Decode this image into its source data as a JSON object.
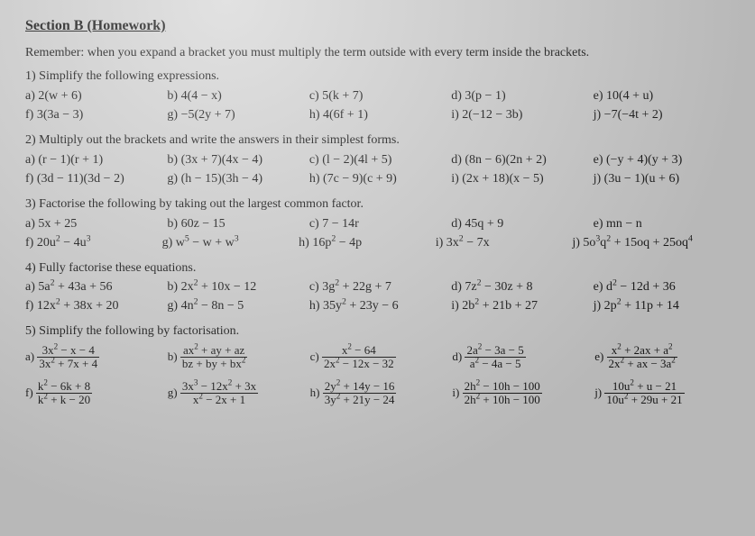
{
  "title": "Section B (Homework)",
  "remember": "Remember: when you expand a bracket you must multiply the term outside with every term inside the brackets.",
  "q1": {
    "stem": "1) Simplify the following expressions.",
    "items": {
      "a": "a) 2(w + 6)",
      "b": "b) 4(4 − x)",
      "c": "c) 5(k + 7)",
      "d": "d) 3(p − 1)",
      "e": "e) 10(4 + u)",
      "f": "f) 3(3a − 3)",
      "g": "g) −5(2y + 7)",
      "h": "h) 4(6f + 1)",
      "i": "i) 2(−12 − 3b)",
      "j": "j) −7(−4t + 2)"
    }
  },
  "q2": {
    "stem": "2) Multiply out the brackets and write the answers in their simplest forms.",
    "items": {
      "a": "a) (r − 1)(r + 1)",
      "b": "b) (3x + 7)(4x − 4)",
      "c": "c) (l − 2)(4l + 5)",
      "d": "d) (8n − 6)(2n + 2)",
      "e": "e) (−y + 4)(y + 3)",
      "f": "f) (3d − 11)(3d − 2)",
      "g": "g) (h − 15)(3h − 4)",
      "h": "h) (7c − 9)(c + 9)",
      "i": "i) (2x + 18)(x − 5)",
      "j": "j) (3u − 1)(u + 6)"
    }
  },
  "q3": {
    "stem": "3) Factorise the following by taking out the largest common factor.",
    "items": {
      "a": "a) 5x + 25",
      "b": "b) 60z − 15",
      "c": "c) 7 − 14r",
      "d": "d) 45q + 9",
      "e": "e) mn − n",
      "f_html": "f) 20u<sup>2</sup> − 4u<sup>3</sup>",
      "g_html": "g) w<sup>5</sup> − w + w<sup>3</sup>",
      "h_html": "h) 16p<sup>2</sup> − 4p",
      "i_html": "i) 3x<sup>2</sup> − 7x",
      "j_html": "j) 5o<sup>3</sup>q<sup>2</sup> + 15oq + 25oq<sup>4</sup>"
    }
  },
  "q4": {
    "stem": "4) Fully factorise these equations.",
    "items": {
      "a_html": "a) 5a<sup>2</sup> + 43a + 56",
      "b_html": "b) 2x<sup>2</sup> + 10x − 12",
      "c_html": "c) 3g<sup>2</sup> + 22g + 7",
      "d_html": "d) 7z<sup>2</sup> − 30z + 8",
      "e_html": "e) d<sup>2</sup> − 12d + 36",
      "f_html": "f) 12x<sup>2</sup> + 38x + 20",
      "g_html": "g) 4n<sup>2</sup> − 8n − 5",
      "h_html": "h) 35y<sup>2</sup> + 23y − 6",
      "i_html": "i) 2b<sup>2</sup> + 21b + 27",
      "j_html": "j) 2p<sup>2</sup> + 11p + 14"
    }
  },
  "q5": {
    "stem": "5) Simplify the following by factorisation.",
    "a": {
      "label": "a)",
      "num": "3x<sup>2</sup> − x − 4",
      "den": "3x<sup>2</sup> + 7x + 4"
    },
    "b": {
      "label": "b)",
      "num": "ax<sup>2</sup> + ay + az",
      "den": "bz + by + bx<sup>2</sup>"
    },
    "c": {
      "label": "c)",
      "num": "x<sup>2</sup> − 64",
      "den": "2x<sup>2</sup> − 12x − 32"
    },
    "d": {
      "label": "d)",
      "num": "2a<sup>2</sup> − 3a − 5",
      "den": "a<sup>2</sup> − 4a − 5"
    },
    "e": {
      "label": "e)",
      "num": "x<sup>2</sup> + 2ax + a<sup>2</sup>",
      "den": "2x<sup>2</sup> + ax − 3a<sup>2</sup>"
    },
    "f": {
      "label": "f)",
      "num": "k<sup>2</sup> − 6k + 8",
      "den": "k<sup>2</sup> + k − 20"
    },
    "g": {
      "label": "g)",
      "num": "3x<sup>3</sup> − 12x<sup>2</sup> + 3x",
      "den": "x<sup>2</sup> − 2x + 1"
    },
    "h": {
      "label": "h)",
      "num": "2y<sup>2</sup> + 14y − 16",
      "den": "3y<sup>2</sup> + 21y − 24"
    },
    "i": {
      "label": "i)",
      "num": "2h<sup>2</sup> − 10h − 100",
      "den": "2h<sup>2</sup> + 10h − 100"
    },
    "j": {
      "label": "j)",
      "num": "10u<sup>2</sup> + u − 21",
      "den": "10u<sup>2</sup> + 29u + 21"
    }
  }
}
